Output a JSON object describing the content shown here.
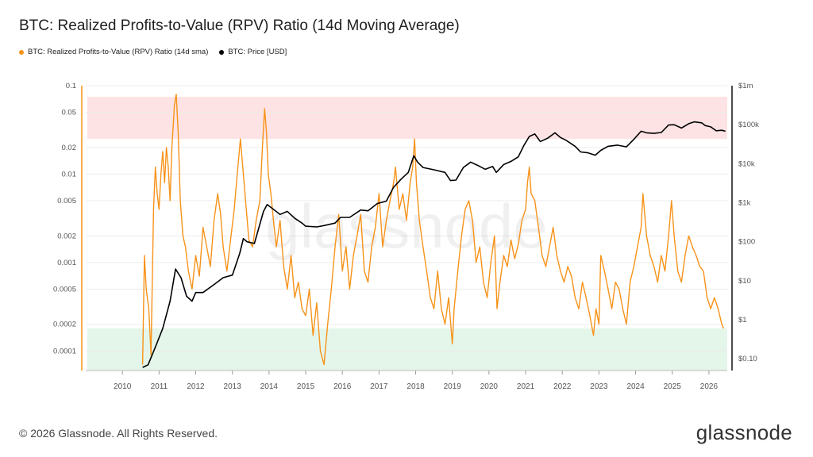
{
  "header": {
    "title": "BTC: Realized Profits-to-Value (RPV) Ratio (14d Moving Average)"
  },
  "legend": {
    "items": [
      {
        "label": "BTC: Realized Profits-to-Value (RPV) Ratio (14d sma)",
        "color": "#f7931a"
      },
      {
        "label": "BTC: Price [USD]",
        "color": "#000000"
      }
    ]
  },
  "footer": {
    "copyright": "© 2026 Glassnode. All Rights Reserved.",
    "brand": "glassnode"
  },
  "watermark": "glassnode",
  "chart_data": {
    "type": "line",
    "title": "BTC: Realized Profits-to-Value (RPV) Ratio (14d Moving Average)",
    "x_ticks": [
      "2010",
      "2011",
      "2012",
      "2013",
      "2014",
      "2015",
      "2016",
      "2017",
      "2018",
      "2019",
      "2020",
      "2021",
      "2022",
      "2023",
      "2024",
      "2025",
      "2026"
    ],
    "xlim": [
      2009.0,
      2026.5
    ],
    "left_axis": {
      "scale": "log",
      "ylim": [
        6e-05,
        0.1
      ],
      "ticks": [
        0.1,
        0.05,
        0.02,
        0.01,
        0.005,
        0.002,
        0.001,
        0.0005,
        0.0002,
        0.0001
      ],
      "tick_labels": [
        "0.1",
        "0.05",
        "0.02",
        "0.01",
        "0.005",
        "0.002",
        "0.001",
        "0.0005",
        "0.0002",
        "0.0001"
      ]
    },
    "right_axis": {
      "scale": "log",
      "ylim": [
        0.05,
        1000000
      ],
      "ticks": [
        1000000,
        100000,
        10000,
        1000,
        100,
        10,
        1,
        0.1
      ],
      "tick_labels": [
        "$1m",
        "$100k",
        "$10k",
        "$1k",
        "$100",
        "$10",
        "$1",
        "$0.10"
      ]
    },
    "bands": [
      {
        "name": "high",
        "from": 0.025,
        "to": 0.075,
        "color": "#fde3e3",
        "axis": "left"
      },
      {
        "name": "low",
        "from": 6e-05,
        "to": 0.00018,
        "color": "#e4f5ea",
        "axis": "left"
      }
    ],
    "grid": true,
    "series": [
      {
        "name": "BTC: Realized Profits-to-Value (RPV) Ratio (14d sma)",
        "axis": "left",
        "color": "#f7931a",
        "points": [
          [
            2010.55,
            7e-05
          ],
          [
            2010.6,
            0.0012
          ],
          [
            2010.65,
            0.0005
          ],
          [
            2010.72,
            0.0003
          ],
          [
            2010.78,
            9e-05
          ],
          [
            2010.85,
            0.004
          ],
          [
            2010.9,
            0.012
          ],
          [
            2010.95,
            0.006
          ],
          [
            2011.0,
            0.004
          ],
          [
            2011.05,
            0.01
          ],
          [
            2011.1,
            0.018
          ],
          [
            2011.15,
            0.008
          ],
          [
            2011.2,
            0.02
          ],
          [
            2011.25,
            0.012
          ],
          [
            2011.3,
            0.005
          ],
          [
            2011.35,
            0.02
          ],
          [
            2011.42,
            0.06
          ],
          [
            2011.47,
            0.08
          ],
          [
            2011.52,
            0.03
          ],
          [
            2011.58,
            0.005
          ],
          [
            2011.65,
            0.002
          ],
          [
            2011.72,
            0.0015
          ],
          [
            2011.8,
            0.0008
          ],
          [
            2011.9,
            0.0005
          ],
          [
            2012.0,
            0.0012
          ],
          [
            2012.1,
            0.0007
          ],
          [
            2012.2,
            0.0025
          ],
          [
            2012.3,
            0.0015
          ],
          [
            2012.4,
            0.0009
          ],
          [
            2012.5,
            0.003
          ],
          [
            2012.6,
            0.006
          ],
          [
            2012.68,
            0.0035
          ],
          [
            2012.75,
            0.0015
          ],
          [
            2012.85,
            0.0008
          ],
          [
            2012.95,
            0.0018
          ],
          [
            2013.05,
            0.004
          ],
          [
            2013.15,
            0.012
          ],
          [
            2013.22,
            0.025
          ],
          [
            2013.3,
            0.01
          ],
          [
            2013.38,
            0.004
          ],
          [
            2013.45,
            0.0018
          ],
          [
            2013.55,
            0.0015
          ],
          [
            2013.65,
            0.003
          ],
          [
            2013.75,
            0.005
          ],
          [
            2013.82,
            0.02
          ],
          [
            2013.88,
            0.055
          ],
          [
            2013.93,
            0.03
          ],
          [
            2013.98,
            0.01
          ],
          [
            2014.05,
            0.006
          ],
          [
            2014.12,
            0.003
          ],
          [
            2014.2,
            0.0015
          ],
          [
            2014.3,
            0.003
          ],
          [
            2014.4,
            0.0009
          ],
          [
            2014.5,
            0.0005
          ],
          [
            2014.6,
            0.0012
          ],
          [
            2014.7,
            0.0004
          ],
          [
            2014.8,
            0.0006
          ],
          [
            2014.9,
            0.0003
          ],
          [
            2015.0,
            0.00025
          ],
          [
            2015.1,
            0.0005
          ],
          [
            2015.2,
            0.00015
          ],
          [
            2015.3,
            0.00035
          ],
          [
            2015.4,
            0.0001
          ],
          [
            2015.5,
            7e-05
          ],
          [
            2015.6,
            0.0002
          ],
          [
            2015.7,
            0.0005
          ],
          [
            2015.8,
            0.0015
          ],
          [
            2015.9,
            0.0035
          ],
          [
            2016.0,
            0.0008
          ],
          [
            2016.1,
            0.0015
          ],
          [
            2016.2,
            0.0005
          ],
          [
            2016.3,
            0.0012
          ],
          [
            2016.4,
            0.002
          ],
          [
            2016.5,
            0.0035
          ],
          [
            2016.6,
            0.0008
          ],
          [
            2016.7,
            0.0006
          ],
          [
            2016.8,
            0.0015
          ],
          [
            2016.9,
            0.0025
          ],
          [
            2017.0,
            0.006
          ],
          [
            2017.1,
            0.0015
          ],
          [
            2017.2,
            0.003
          ],
          [
            2017.3,
            0.005
          ],
          [
            2017.4,
            0.008
          ],
          [
            2017.45,
            0.012
          ],
          [
            2017.55,
            0.004
          ],
          [
            2017.65,
            0.006
          ],
          [
            2017.75,
            0.003
          ],
          [
            2017.85,
            0.008
          ],
          [
            2017.92,
            0.012
          ],
          [
            2017.97,
            0.025
          ],
          [
            2018.02,
            0.008
          ],
          [
            2018.1,
            0.003
          ],
          [
            2018.2,
            0.0015
          ],
          [
            2018.3,
            0.0008
          ],
          [
            2018.4,
            0.0004
          ],
          [
            2018.5,
            0.0003
          ],
          [
            2018.6,
            0.0008
          ],
          [
            2018.7,
            0.0003
          ],
          [
            2018.8,
            0.0002
          ],
          [
            2018.9,
            0.0004
          ],
          [
            2019.0,
            0.00012
          ],
          [
            2019.05,
            0.0003
          ],
          [
            2019.15,
            0.0008
          ],
          [
            2019.25,
            0.002
          ],
          [
            2019.35,
            0.004
          ],
          [
            2019.45,
            0.005
          ],
          [
            2019.55,
            0.003
          ],
          [
            2019.65,
            0.001
          ],
          [
            2019.75,
            0.0015
          ],
          [
            2019.85,
            0.0006
          ],
          [
            2019.95,
            0.0004
          ],
          [
            2020.05,
            0.001
          ],
          [
            2020.15,
            0.002
          ],
          [
            2020.22,
            0.0003
          ],
          [
            2020.3,
            0.0006
          ],
          [
            2020.4,
            0.0012
          ],
          [
            2020.5,
            0.0009
          ],
          [
            2020.6,
            0.0018
          ],
          [
            2020.7,
            0.0011
          ],
          [
            2020.8,
            0.0016
          ],
          [
            2020.9,
            0.003
          ],
          [
            2021.0,
            0.004
          ],
          [
            2021.05,
            0.008
          ],
          [
            2021.1,
            0.012
          ],
          [
            2021.15,
            0.006
          ],
          [
            2021.25,
            0.005
          ],
          [
            2021.35,
            0.0025
          ],
          [
            2021.45,
            0.0012
          ],
          [
            2021.55,
            0.0009
          ],
          [
            2021.65,
            0.0015
          ],
          [
            2021.75,
            0.0025
          ],
          [
            2021.85,
            0.0012
          ],
          [
            2021.95,
            0.0008
          ],
          [
            2022.05,
            0.0006
          ],
          [
            2022.15,
            0.0009
          ],
          [
            2022.25,
            0.0007
          ],
          [
            2022.35,
            0.0004
          ],
          [
            2022.45,
            0.0003
          ],
          [
            2022.55,
            0.0006
          ],
          [
            2022.65,
            0.0004
          ],
          [
            2022.75,
            0.00025
          ],
          [
            2022.85,
            0.00015
          ],
          [
            2022.92,
            0.0003
          ],
          [
            2023.0,
            0.0002
          ],
          [
            2023.05,
            0.0012
          ],
          [
            2023.15,
            0.0008
          ],
          [
            2023.25,
            0.0005
          ],
          [
            2023.35,
            0.0003
          ],
          [
            2023.45,
            0.0006
          ],
          [
            2023.55,
            0.0005
          ],
          [
            2023.65,
            0.0003
          ],
          [
            2023.75,
            0.0002
          ],
          [
            2023.85,
            0.0006
          ],
          [
            2023.95,
            0.0009
          ],
          [
            2024.05,
            0.0015
          ],
          [
            2024.15,
            0.0025
          ],
          [
            2024.2,
            0.006
          ],
          [
            2024.3,
            0.002
          ],
          [
            2024.4,
            0.0012
          ],
          [
            2024.5,
            0.0009
          ],
          [
            2024.6,
            0.0006
          ],
          [
            2024.7,
            0.0012
          ],
          [
            2024.8,
            0.0008
          ],
          [
            2024.9,
            0.002
          ],
          [
            2024.98,
            0.005
          ],
          [
            2025.05,
            0.002
          ],
          [
            2025.15,
            0.0008
          ],
          [
            2025.25,
            0.0006
          ],
          [
            2025.35,
            0.0012
          ],
          [
            2025.45,
            0.002
          ],
          [
            2025.55,
            0.0015
          ],
          [
            2025.65,
            0.0012
          ],
          [
            2025.75,
            0.0009
          ],
          [
            2025.85,
            0.0008
          ],
          [
            2025.95,
            0.0004
          ],
          [
            2026.05,
            0.0003
          ],
          [
            2026.15,
            0.0004
          ],
          [
            2026.25,
            0.0003
          ],
          [
            2026.35,
            0.0002
          ],
          [
            2026.4,
            0.00018
          ]
        ]
      },
      {
        "name": "BTC: Price [USD]",
        "axis": "right",
        "color": "#000000",
        "points": [
          [
            2010.55,
            0.06
          ],
          [
            2010.7,
            0.07
          ],
          [
            2010.9,
            0.2
          ],
          [
            2011.1,
            0.6
          ],
          [
            2011.3,
            3
          ],
          [
            2011.45,
            20
          ],
          [
            2011.6,
            12
          ],
          [
            2011.75,
            4
          ],
          [
            2011.9,
            3
          ],
          [
            2012.0,
            5
          ],
          [
            2012.2,
            5
          ],
          [
            2012.5,
            8
          ],
          [
            2012.75,
            12
          ],
          [
            2013.0,
            14
          ],
          [
            2013.2,
            50
          ],
          [
            2013.3,
            120
          ],
          [
            2013.4,
            100
          ],
          [
            2013.6,
            90
          ],
          [
            2013.85,
            600
          ],
          [
            2013.95,
            900
          ],
          [
            2014.1,
            700
          ],
          [
            2014.3,
            500
          ],
          [
            2014.5,
            600
          ],
          [
            2014.7,
            400
          ],
          [
            2014.9,
            300
          ],
          [
            2015.0,
            250
          ],
          [
            2015.3,
            240
          ],
          [
            2015.5,
            260
          ],
          [
            2015.8,
            300
          ],
          [
            2015.95,
            420
          ],
          [
            2016.2,
            420
          ],
          [
            2016.5,
            650
          ],
          [
            2016.7,
            620
          ],
          [
            2016.95,
            950
          ],
          [
            2017.2,
            1100
          ],
          [
            2017.4,
            2500
          ],
          [
            2017.6,
            4000
          ],
          [
            2017.8,
            6000
          ],
          [
            2017.95,
            16000
          ],
          [
            2018.05,
            11000
          ],
          [
            2018.2,
            8000
          ],
          [
            2018.5,
            7000
          ],
          [
            2018.8,
            6000
          ],
          [
            2018.95,
            3700
          ],
          [
            2019.1,
            3800
          ],
          [
            2019.3,
            8000
          ],
          [
            2019.5,
            11000
          ],
          [
            2019.7,
            9000
          ],
          [
            2019.9,
            7200
          ],
          [
            2020.1,
            8500
          ],
          [
            2020.2,
            6000
          ],
          [
            2020.4,
            9500
          ],
          [
            2020.6,
            11500
          ],
          [
            2020.8,
            15000
          ],
          [
            2020.95,
            29000
          ],
          [
            2021.1,
            50000
          ],
          [
            2021.25,
            58000
          ],
          [
            2021.4,
            37000
          ],
          [
            2021.6,
            45000
          ],
          [
            2021.8,
            62000
          ],
          [
            2021.95,
            47000
          ],
          [
            2022.1,
            40000
          ],
          [
            2022.35,
            28000
          ],
          [
            2022.5,
            20000
          ],
          [
            2022.7,
            19000
          ],
          [
            2022.9,
            16500
          ],
          [
            2023.05,
            22000
          ],
          [
            2023.25,
            28000
          ],
          [
            2023.5,
            30000
          ],
          [
            2023.75,
            27000
          ],
          [
            2023.95,
            42000
          ],
          [
            2024.15,
            68000
          ],
          [
            2024.3,
            62000
          ],
          [
            2024.5,
            60000
          ],
          [
            2024.7,
            63000
          ],
          [
            2024.9,
            98000
          ],
          [
            2025.05,
            100000
          ],
          [
            2025.25,
            82000
          ],
          [
            2025.45,
            106000
          ],
          [
            2025.6,
            118000
          ],
          [
            2025.8,
            112000
          ],
          [
            2025.9,
            95000
          ],
          [
            2026.05,
            88000
          ],
          [
            2026.2,
            70000
          ],
          [
            2026.35,
            72000
          ],
          [
            2026.45,
            68000
          ]
        ]
      }
    ]
  }
}
